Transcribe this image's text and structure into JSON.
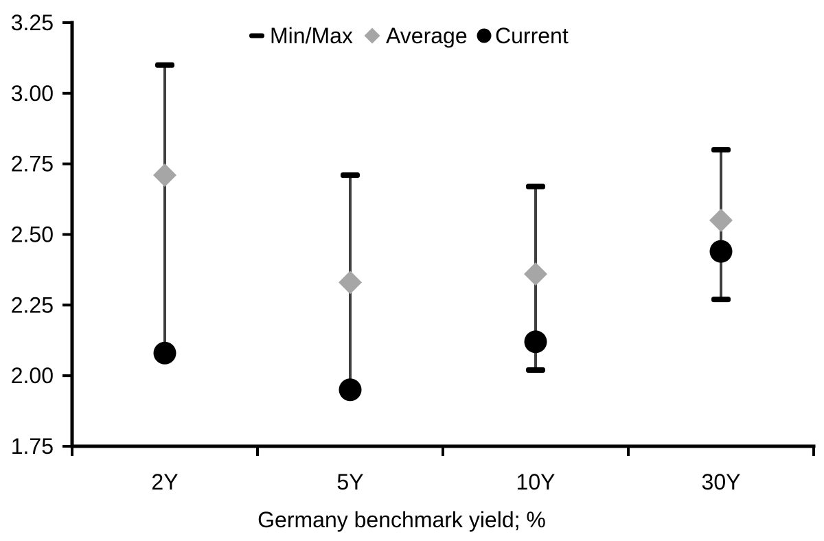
{
  "chart_data": {
    "type": "scatter",
    "subtype": "min-max-range",
    "title": "",
    "xlabel": "Germany benchmark yield; %",
    "ylabel": "",
    "categories": [
      "2Y",
      "5Y",
      "10Y",
      "30Y"
    ],
    "ylim": [
      1.75,
      3.25
    ],
    "ytick_step": 0.25,
    "yticks": [
      "3.25",
      "3.00",
      "2.75",
      "2.50",
      "2.25",
      "2.00",
      "1.75"
    ],
    "grid": false,
    "legend_position": "top-center",
    "legend": [
      {
        "label": "Min/Max",
        "marker": "dash-icon",
        "color": "#000000"
      },
      {
        "label": "Average",
        "marker": "diamond-icon",
        "color": "#a6a6a6"
      },
      {
        "label": "Current",
        "marker": "circle-icon",
        "color": "#000000"
      }
    ],
    "series": [
      {
        "name": "Min/Max",
        "role": "range",
        "min": [
          2.08,
          1.95,
          2.02,
          2.27
        ],
        "max": [
          3.1,
          2.71,
          2.67,
          2.8
        ]
      },
      {
        "name": "Average",
        "role": "average",
        "values": [
          2.71,
          2.33,
          2.36,
          2.55
        ]
      },
      {
        "name": "Current",
        "role": "current",
        "values": [
          2.08,
          1.95,
          2.12,
          2.44
        ]
      }
    ],
    "colors": {
      "axis": "#000000",
      "text": "#000000",
      "range_line": "#3f3f3f",
      "cap": "#000000",
      "average": "#a6a6a6",
      "current": "#000000",
      "background": "#ffffff"
    }
  }
}
